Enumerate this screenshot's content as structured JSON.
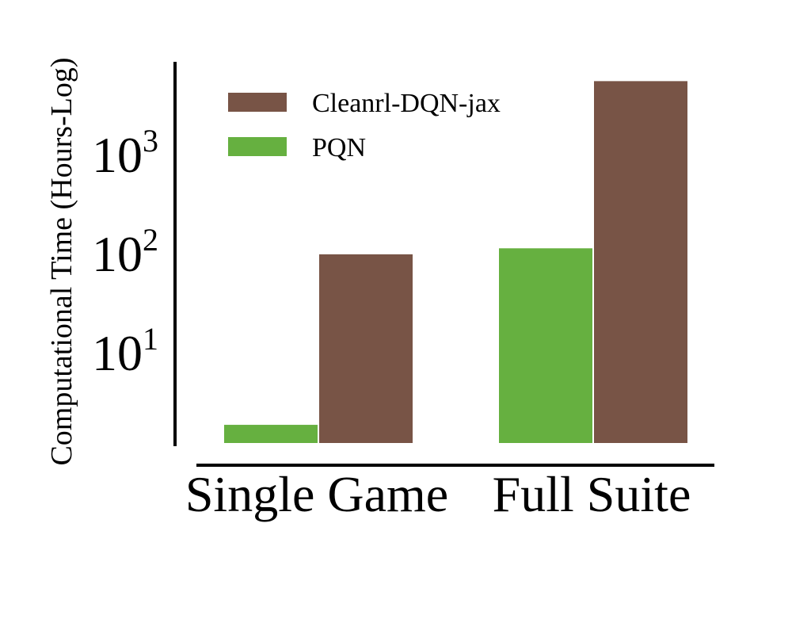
{
  "chart_data": {
    "type": "bar",
    "ylabel": "Computational Time (Hours-Log)",
    "xlabel": "",
    "yscale": "log",
    "ylim": [
      1.2,
      8000
    ],
    "grid": false,
    "legend_position": "top-left",
    "categories": [
      "Single Game",
      "Full Suite"
    ],
    "yticks": [
      {
        "base": "10",
        "exp": "1",
        "value": 10
      },
      {
        "base": "10",
        "exp": "2",
        "value": 100
      },
      {
        "base": "10",
        "exp": "3",
        "value": 1000
      }
    ],
    "series": [
      {
        "name": "PQN",
        "color": "#66b040",
        "values": [
          1.9,
          115
        ]
      },
      {
        "name": "Cleanrl-DQN-jax",
        "color": "#785446",
        "values": [
          100,
          5600
        ]
      }
    ],
    "legend_order": [
      1,
      0
    ]
  }
}
